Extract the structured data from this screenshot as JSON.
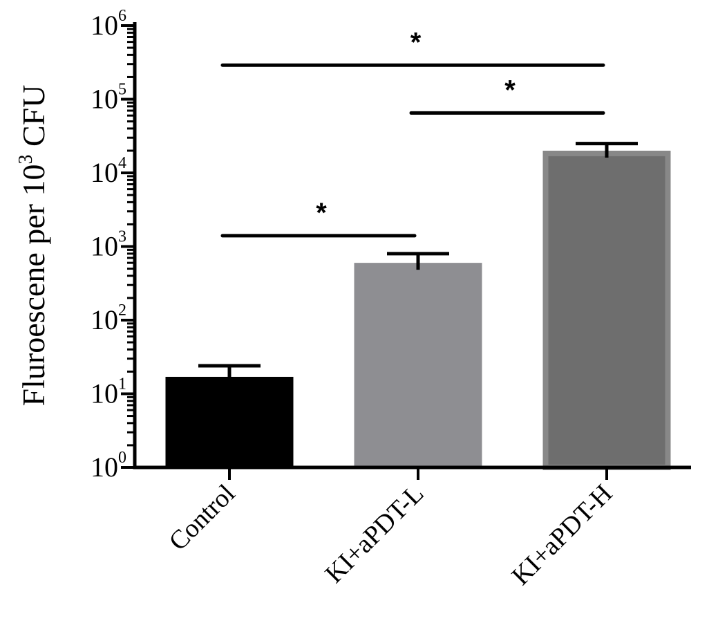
{
  "chart_data": {
    "type": "bar",
    "ylabel_main": "Fluroescene per 10",
    "ylabel_exp": "3",
    "ylabel_unit": " CFU",
    "yscale": "log",
    "ylim": [
      1,
      1000000
    ],
    "yticks": [
      {
        "base": "10",
        "exp": "0",
        "value": 1
      },
      {
        "base": "10",
        "exp": "1",
        "value": 10
      },
      {
        "base": "10",
        "exp": "2",
        "value": 100
      },
      {
        "base": "10",
        "exp": "3",
        "value": 1000
      },
      {
        "base": "10",
        "exp": "4",
        "value": 10000
      },
      {
        "base": "10",
        "exp": "5",
        "value": 100000
      },
      {
        "base": "10",
        "exp": "6",
        "value": 1000000
      }
    ],
    "categories": [
      "Control",
      "KI+aPDT-L",
      "KI+aPDT-H"
    ],
    "values": [
      17,
      600,
      20000
    ],
    "error_upper": [
      24,
      800,
      25000
    ],
    "colors": [
      "#000000",
      "#8e8e92",
      "#6e6e6e"
    ],
    "significance": [
      {
        "from": 0,
        "to": 1,
        "y": 1400,
        "label": "*"
      },
      {
        "from": 1,
        "to": 2,
        "y": 65000,
        "label": "*"
      },
      {
        "from": 0,
        "to": 2,
        "y": 290000,
        "label": "*"
      }
    ],
    "grid": false,
    "legend": "none"
  }
}
